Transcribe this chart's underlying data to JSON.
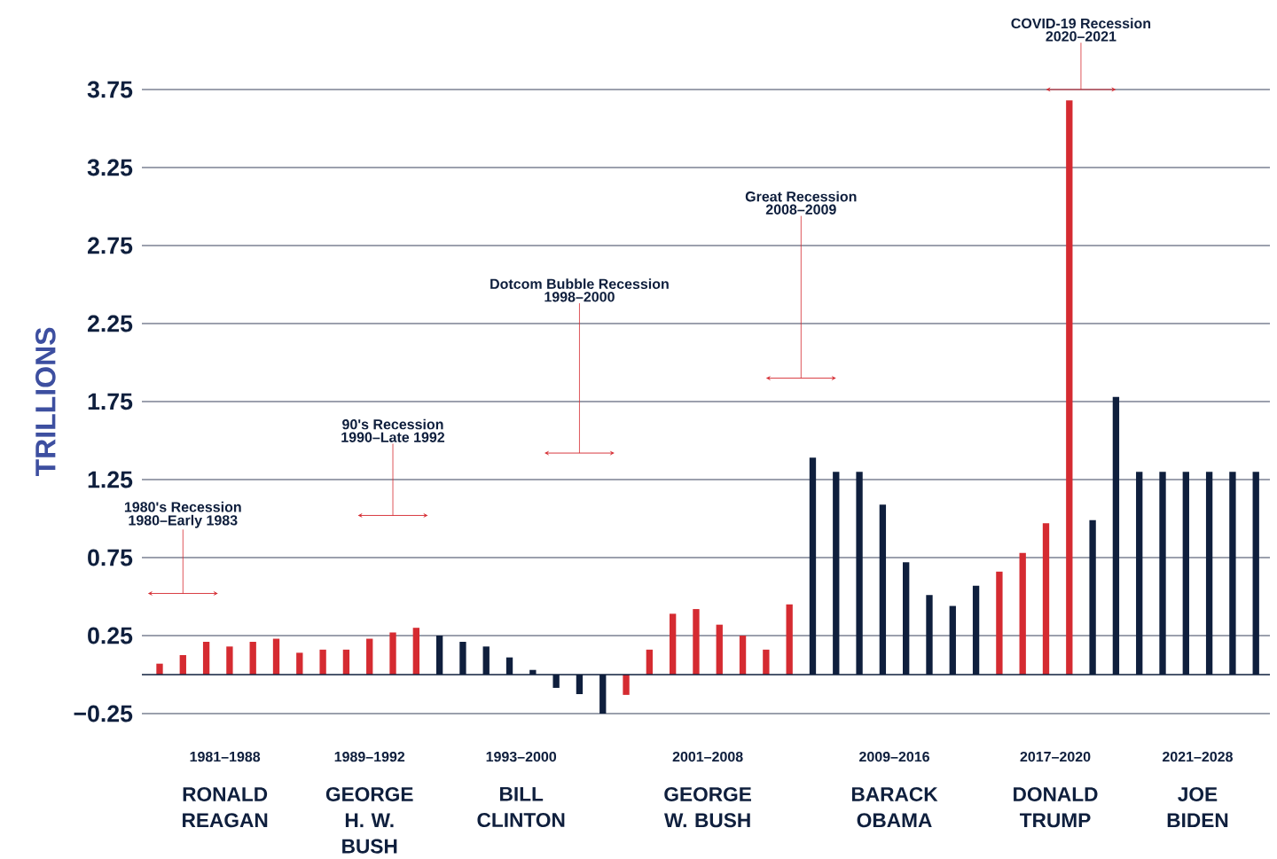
{
  "chart_data": {
    "type": "bar",
    "categories": [
      null,
      null,
      null,
      null,
      null,
      null,
      null,
      null,
      null,
      null,
      null,
      null,
      null,
      null,
      null,
      null,
      null,
      null,
      null,
      null,
      null,
      null,
      null,
      null,
      null,
      null,
      null,
      null,
      null,
      null,
      null,
      null,
      null,
      null,
      null,
      null,
      null,
      null,
      null,
      null,
      null,
      null,
      null,
      null,
      null,
      null,
      null,
      null
    ],
    "values": [
      0.07,
      0.125,
      0.21,
      0.18,
      0.21,
      0.23,
      0.14,
      0.16,
      0.16,
      0.23,
      0.27,
      0.3,
      0.25,
      0.21,
      0.18,
      0.11,
      0.03,
      -0.085,
      -0.125,
      -0.25,
      -0.13,
      0.16,
      0.39,
      0.42,
      0.32,
      0.25,
      0.16,
      0.45,
      1.39,
      1.3,
      1.3,
      1.09,
      0.72,
      0.51,
      0.44,
      0.57,
      0.66,
      0.78,
      0.97,
      3.68,
      0.99,
      1.78,
      1.3,
      1.3,
      1.3,
      1.3,
      1.3,
      1.3
    ],
    "colors": [
      "#d52b31",
      "#d52b31",
      "#d52b31",
      "#d52b31",
      "#d52b31",
      "#d52b31",
      "#d52b31",
      "#d52b31",
      "#d52b31",
      "#d52b31",
      "#d52b31",
      "#d52b31",
      "#0f1f3d",
      "#0f1f3d",
      "#0f1f3d",
      "#0f1f3d",
      "#0f1f3d",
      "#0f1f3d",
      "#0f1f3d",
      "#0f1f3d",
      "#d52b31",
      "#d52b31",
      "#d52b31",
      "#d52b31",
      "#d52b31",
      "#d52b31",
      "#d52b31",
      "#d52b31",
      "#0f1f3d",
      "#0f1f3d",
      "#0f1f3d",
      "#0f1f3d",
      "#0f1f3d",
      "#0f1f3d",
      "#0f1f3d",
      "#0f1f3d",
      "#d52b31",
      "#d52b31",
      "#d52b31",
      "#d52b31",
      "#0f1f3d",
      "#0f1f3d",
      "#0f1f3d",
      "#0f1f3d",
      "#0f1f3d",
      "#0f1f3d",
      "#0f1f3d",
      "#0f1f3d"
    ],
    "ylabel": "TRILLIONS",
    "ylim": [
      -0.25,
      3.75
    ],
    "yticks": [
      {
        "value": -0.25,
        "label": "−0.25"
      },
      0.25,
      0.75,
      1.25,
      1.75,
      2.25,
      2.75,
      3.25,
      3.75
    ],
    "grid": "y",
    "annotations": [
      "1980's Recession",
      "1980–Early 1983",
      "90's Recession",
      "1990–Late 1992",
      "Dotcom Bubble Recession",
      "1998–2000",
      "Great Recession",
      "2008–2009",
      "COVID-19 Recession",
      "2020–2021",
      "1981–1988",
      "1989–1992",
      "1993–2000",
      "2001–2008",
      "2009–2016",
      "2017–2020",
      "2021–2028",
      "RONALD REAGAN",
      "GEORGE H. W. BUSH",
      "BILL CLINTON",
      "GEORGE W. BUSH",
      "BARACK OBAMA",
      "DONALD TRUMP",
      "JOE BIDEN"
    ]
  }
}
